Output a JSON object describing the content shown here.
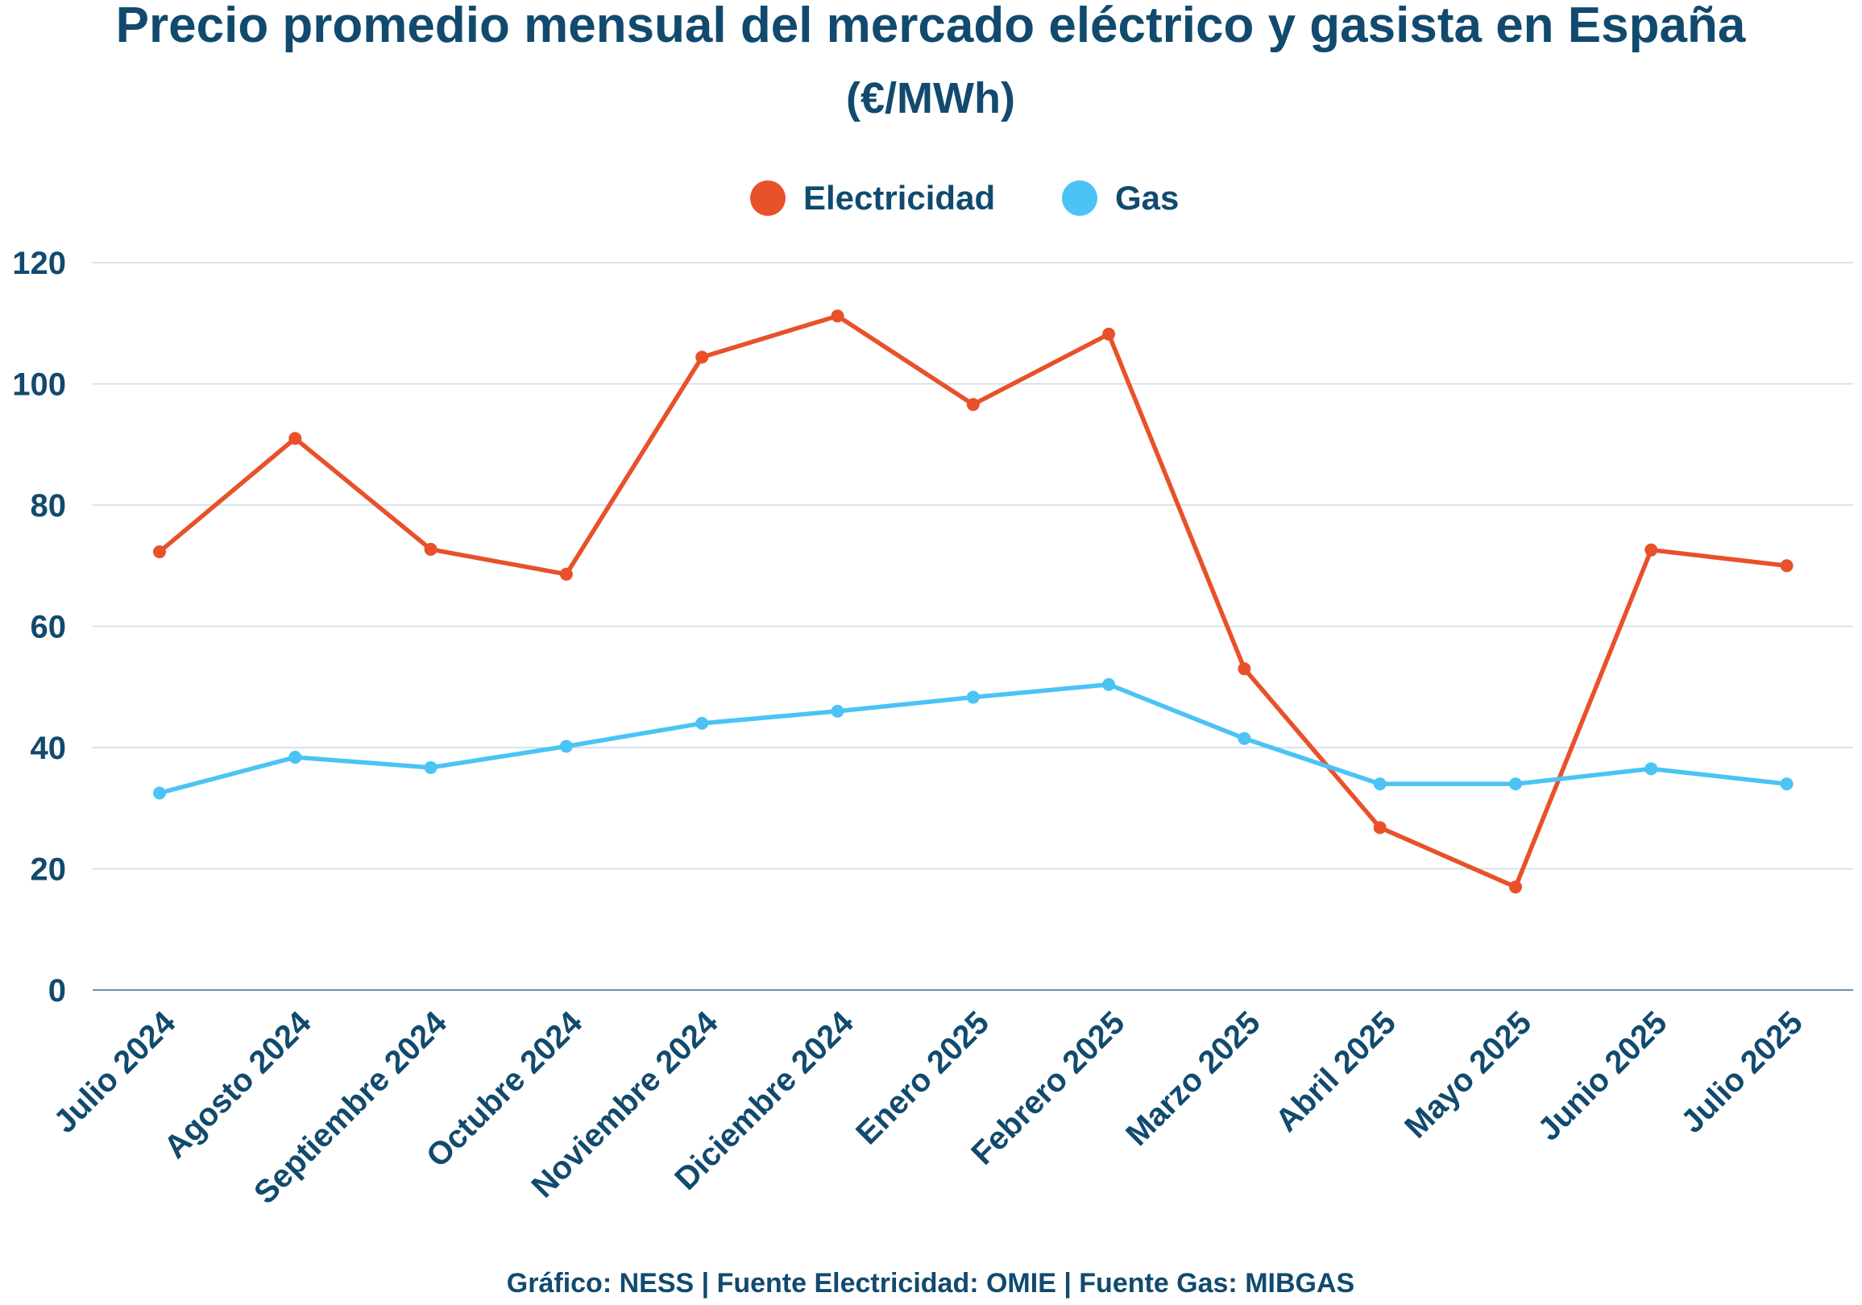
{
  "chart_data": {
    "type": "line",
    "title": "Precio promedio mensual del mercado eléctrico y gasista en España",
    "subtitle": "(€/MWh)",
    "categories": [
      "Julio 2024",
      "Agosto 2024",
      "Septiembre 2024",
      "Octubre 2024",
      "Noviembre 2024",
      "Diciembre 2024",
      "Enero 2025",
      "Febrero 2025",
      "Marzo 2025",
      "Abril 2025",
      "Mayo 2025",
      "Junio 2025",
      "Julio 2025"
    ],
    "series": [
      {
        "name": "Electricidad",
        "color": "#e8512a",
        "values": [
          72.3,
          91.0,
          72.7,
          68.6,
          104.4,
          111.2,
          96.6,
          108.2,
          53.0,
          26.8,
          17.0,
          72.6,
          70.0
        ]
      },
      {
        "name": "Gas",
        "color": "#4bc3f5",
        "values": [
          32.5,
          38.4,
          36.7,
          40.2,
          44.0,
          46.0,
          48.3,
          50.4,
          41.5,
          34.0,
          34.0,
          36.5,
          34.0
        ]
      }
    ],
    "yticks": [
      0,
      20,
      40,
      60,
      80,
      100,
      120
    ],
    "ylim": [
      0,
      120
    ],
    "xlabel": "",
    "ylabel": "",
    "grid": true,
    "legend_position": "top-center",
    "footer": "Gráfico: NESS | Fuente Electricidad: OMIE | Fuente Gas: MIBGAS",
    "text_color": "#114a6e",
    "grid_color": "#c9dbe6",
    "axis_color": "#6f8fa8"
  }
}
